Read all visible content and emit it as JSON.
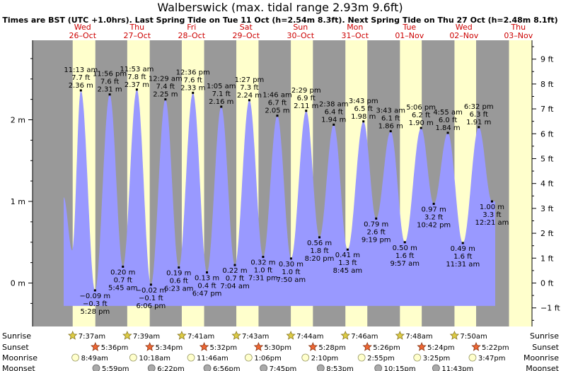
{
  "chart_data": {
    "type": "area",
    "title": "Walberswick (max. tidal range 2.93m 9.6ft)",
    "subtitle": "Times are BST (UTC +1.0hrs). Last Spring Tide on Tue 11 Oct (h=2.54m 8.3ft). Next Spring Tide on Thu 27 Oct (h=2.48m 8.1ft)",
    "days": [
      {
        "dow": "Wed",
        "date": "26–Oct"
      },
      {
        "dow": "Thu",
        "date": "27–Oct"
      },
      {
        "dow": "Fri",
        "date": "28–Oct"
      },
      {
        "dow": "Sat",
        "date": "29–Oct"
      },
      {
        "dow": "Sun",
        "date": "30–Oct"
      },
      {
        "dow": "Mon",
        "date": "31–Oct"
      },
      {
        "dow": "Tue",
        "date": "01–Nov"
      },
      {
        "dow": "Wed",
        "date": "02–Nov"
      },
      {
        "dow": "Thu",
        "date": "03–Nov"
      }
    ],
    "y_axis_m": {
      "range": [
        -0.35,
        3.0
      ],
      "ticks": [
        "0 m",
        "1 m",
        "2 m"
      ],
      "tick_values": [
        0,
        1,
        2
      ]
    },
    "y_axis_ft": {
      "ticks": [
        "−1 ft",
        "0 ft",
        "1 ft",
        "2 ft",
        "3 ft",
        "4 ft",
        "5 ft",
        "6 ft",
        "7 ft",
        "8 ft",
        "9 ft"
      ],
      "tick_values": [
        -1,
        0,
        1,
        2,
        3,
        4,
        5,
        6,
        7,
        8,
        9
      ]
    },
    "tides": [
      {
        "day": 0,
        "t": 11.217,
        "time": "11:13 am",
        "m": 2.36,
        "m_label": "2.36 m",
        "ft_label": "7.7 ft",
        "type": "high"
      },
      {
        "day": 0,
        "t": 17.467,
        "time": "5:28 pm",
        "m": -0.09,
        "m_label": "−0.09 m",
        "ft_label": "−0.3 ft",
        "type": "low"
      },
      {
        "day": 0,
        "t": 23.933,
        "time": "11:56 pm",
        "m": 2.31,
        "m_label": "2.31 m",
        "ft_label": "7.6 ft",
        "type": "high"
      },
      {
        "day": 1,
        "t": 5.75,
        "time": "5:45 am",
        "m": 0.2,
        "m_label": "0.20 m",
        "ft_label": "0.7 ft",
        "type": "low"
      },
      {
        "day": 1,
        "t": 11.883,
        "time": "11:53 am",
        "m": 2.37,
        "m_label": "2.37 m",
        "ft_label": "7.8 ft",
        "type": "high"
      },
      {
        "day": 1,
        "t": 18.1,
        "time": "6:06 pm",
        "m": -0.02,
        "m_label": "−0.02 m",
        "ft_label": "−0.1 ft",
        "type": "low"
      },
      {
        "day": 2,
        "t": 0.483,
        "time": "12:29 am",
        "m": 2.25,
        "m_label": "2.25 m",
        "ft_label": "7.4 ft",
        "type": "high"
      },
      {
        "day": 2,
        "t": 6.383,
        "time": "6:23 am",
        "m": 0.19,
        "m_label": "0.19 m",
        "ft_label": "0.6 ft",
        "type": "low"
      },
      {
        "day": 2,
        "t": 12.6,
        "time": "12:36 pm",
        "m": 2.33,
        "m_label": "2.33 m",
        "ft_label": "7.6 ft",
        "type": "high"
      },
      {
        "day": 2,
        "t": 18.783,
        "time": "6:47 pm",
        "m": 0.13,
        "m_label": "0.13 m",
        "ft_label": "0.4 ft",
        "type": "low"
      },
      {
        "day": 3,
        "t": 1.083,
        "time": "1:05 am",
        "m": 2.16,
        "m_label": "2.16 m",
        "ft_label": "7.1 ft",
        "type": "high"
      },
      {
        "day": 3,
        "t": 7.067,
        "time": "7:04 am",
        "m": 0.22,
        "m_label": "0.22 m",
        "ft_label": "0.7 ft",
        "type": "low"
      },
      {
        "day": 3,
        "t": 13.45,
        "time": "1:27 pm",
        "m": 2.24,
        "m_label": "2.24 m",
        "ft_label": "7.3 ft",
        "type": "high"
      },
      {
        "day": 3,
        "t": 19.517,
        "time": "7:31 pm",
        "m": 0.32,
        "m_label": "0.32 m",
        "ft_label": "1.0 ft",
        "type": "low"
      },
      {
        "day": 4,
        "t": 1.767,
        "time": "1:46 am",
        "m": 2.05,
        "m_label": "2.05 m",
        "ft_label": "6.7 ft",
        "type": "high"
      },
      {
        "day": 4,
        "t": 7.833,
        "time": "7:50 am",
        "m": 0.3,
        "m_label": "0.30 m",
        "ft_label": "1.0 ft",
        "type": "low"
      },
      {
        "day": 4,
        "t": 14.483,
        "time": "2:29 pm",
        "m": 2.11,
        "m_label": "2.11 m",
        "ft_label": "6.9 ft",
        "type": "high"
      },
      {
        "day": 4,
        "t": 20.333,
        "time": "8:20 pm",
        "m": 0.56,
        "m_label": "0.56 m",
        "ft_label": "1.8 ft",
        "type": "low"
      },
      {
        "day": 5,
        "t": 2.633,
        "time": "2:38 am",
        "m": 1.94,
        "m_label": "1.94 m",
        "ft_label": "6.4 ft",
        "type": "high"
      },
      {
        "day": 5,
        "t": 8.75,
        "time": "8:45 am",
        "m": 0.41,
        "m_label": "0.41 m",
        "ft_label": "1.3 ft",
        "type": "low"
      },
      {
        "day": 5,
        "t": 15.717,
        "time": "3:43 pm",
        "m": 1.98,
        "m_label": "1.98 m",
        "ft_label": "6.5 ft",
        "type": "high"
      },
      {
        "day": 5,
        "t": 21.317,
        "time": "9:19 pm",
        "m": 0.79,
        "m_label": "0.79 m",
        "ft_label": "2.6 ft",
        "type": "low"
      },
      {
        "day": 6,
        "t": 3.717,
        "time": "3:43 am",
        "m": 1.86,
        "m_label": "1.86 m",
        "ft_label": "6.1 ft",
        "type": "high"
      },
      {
        "day": 6,
        "t": 9.95,
        "time": "9:57 am",
        "m": 0.5,
        "m_label": "0.50 m",
        "ft_label": "1.6 ft",
        "type": "low"
      },
      {
        "day": 6,
        "t": 17.1,
        "time": "5:06 pm",
        "m": 1.9,
        "m_label": "1.90 m",
        "ft_label": "6.2 ft",
        "type": "high"
      },
      {
        "day": 6,
        "t": 22.7,
        "time": "10:42 pm",
        "m": 0.97,
        "m_label": "0.97 m",
        "ft_label": "3.2 ft",
        "type": "low"
      },
      {
        "day": 7,
        "t": 4.917,
        "time": "4:55 am",
        "m": 1.84,
        "m_label": "1.84 m",
        "ft_label": "6.0 ft",
        "type": "high"
      },
      {
        "day": 7,
        "t": 11.517,
        "time": "11:31 am",
        "m": 0.49,
        "m_label": "0.49 m",
        "ft_label": "1.6 ft",
        "type": "low"
      },
      {
        "day": 7,
        "t": 18.533,
        "time": "6:32 pm",
        "m": 1.91,
        "m_label": "1.91 m",
        "ft_label": "6.3 ft",
        "type": "high"
      },
      {
        "day": 8,
        "t": 0.35,
        "time": "12:21 am",
        "m": 1.0,
        "m_label": "1.00 m",
        "ft_label": "3.3 ft",
        "type": "low"
      }
    ],
    "bottom_rows": {
      "left_labels": [
        "Sunrise",
        "Sunset",
        "Moonrise",
        "Moonset"
      ],
      "right_labels": [
        "Sunrise",
        "Sunset",
        "Moonrise",
        "Moonset"
      ],
      "sunrise": [
        {
          "day": 0,
          "t": 7.617,
          "label": "7:37am"
        },
        {
          "day": 1,
          "t": 7.65,
          "label": "7:39am"
        },
        {
          "day": 2,
          "t": 7.683,
          "label": "7:41am"
        },
        {
          "day": 3,
          "t": 7.717,
          "label": "7:43am"
        },
        {
          "day": 4,
          "t": 7.733,
          "label": "7:44am"
        },
        {
          "day": 5,
          "t": 7.767,
          "label": "7:46am"
        },
        {
          "day": 6,
          "t": 7.8,
          "label": "7:48am"
        },
        {
          "day": 7,
          "t": 7.833,
          "label": "7:50am"
        }
      ],
      "sunset": [
        {
          "day": 0,
          "t": 17.6,
          "label": "5:36pm"
        },
        {
          "day": 1,
          "t": 17.567,
          "label": "5:34pm"
        },
        {
          "day": 2,
          "t": 17.533,
          "label": "5:32pm"
        },
        {
          "day": 3,
          "t": 17.5,
          "label": "5:30pm"
        },
        {
          "day": 4,
          "t": 17.467,
          "label": "5:28pm"
        },
        {
          "day": 5,
          "t": 17.433,
          "label": "5:26pm"
        },
        {
          "day": 6,
          "t": 17.4,
          "label": "5:24pm"
        },
        {
          "day": 7,
          "t": 17.367,
          "label": "5:22pm"
        }
      ],
      "moonrise": [
        {
          "day": 0,
          "t": 8.817,
          "label": "8:49am"
        },
        {
          "day": 1,
          "t": 10.3,
          "label": "10:18am"
        },
        {
          "day": 2,
          "t": 11.767,
          "label": "11:46am"
        },
        {
          "day": 3,
          "t": 13.1,
          "label": "1:06pm"
        },
        {
          "day": 4,
          "t": 14.167,
          "label": "2:10pm"
        },
        {
          "day": 5,
          "t": 14.917,
          "label": "2:55pm"
        },
        {
          "day": 6,
          "t": 15.417,
          "label": "3:25pm"
        },
        {
          "day": 7,
          "t": 15.783,
          "label": "3:47pm"
        }
      ],
      "moonset": [
        {
          "day": 0,
          "t": 17.983,
          "label": "5:59pm"
        },
        {
          "day": 1,
          "t": 18.367,
          "label": "6:22pm"
        },
        {
          "day": 2,
          "t": 18.933,
          "label": "6:56pm"
        },
        {
          "day": 3,
          "t": 19.75,
          "label": "7:45pm"
        },
        {
          "day": 4,
          "t": 20.883,
          "label": "8:53pm"
        },
        {
          "day": 5,
          "t": 22.25,
          "label": "10:15pm"
        },
        {
          "day": 6,
          "t": 23.717,
          "label": "11:43pm"
        }
      ]
    },
    "colors": {
      "water": "#9999ff",
      "night": "#999999",
      "day": "#ffffcc",
      "header_red": "#cc0000",
      "sun": "#ddcc44",
      "sunset_star": "#ee6633",
      "moonrise": "#ffffcc",
      "moonset": "#aaaaaa"
    }
  }
}
